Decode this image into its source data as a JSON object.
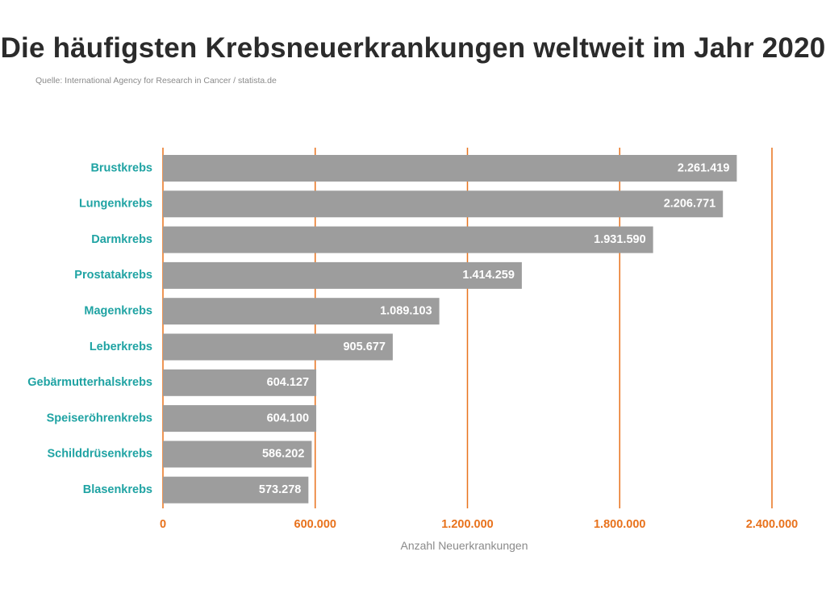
{
  "header": {
    "title": "Die häufigsten Krebsneuerkrankungen weltweit im Jahr 2020",
    "source": "Quelle: International Agency for Research in Cancer / statista.de"
  },
  "colors": {
    "bar": "#9d9d9d",
    "gridline": "#e8721c",
    "category_label": "#1fa3a3",
    "tick_label": "#e8721c",
    "value_label": "#ffffff"
  },
  "chart_data": {
    "type": "bar",
    "orientation": "horizontal",
    "title": "Die häufigsten Krebsneuerkrankungen weltweit im Jahr 2020",
    "xlabel": "Anzahl Neuerkrankungen",
    "ylabel": "",
    "xlim": [
      0,
      2400000
    ],
    "grid": true,
    "categories": [
      "Brustkrebs",
      "Lungenkrebs",
      "Darmkrebs",
      "Prostatakrebs",
      "Magenkrebs",
      "Leberkrebs",
      "Gebärmutterhalskrebs",
      "Speiseröhrenkrebs",
      "Schilddrüsenkrebs",
      "Blasenkrebs"
    ],
    "values": [
      2261419,
      2206771,
      1931590,
      1414259,
      1089103,
      905677,
      604127,
      604100,
      586202,
      573278
    ],
    "value_labels": [
      "2.261.419",
      "2.206.771",
      "1.931.590",
      "1.414.259",
      "1.089.103",
      "905.677",
      "604.127",
      "604.100",
      "586.202",
      "573.278"
    ],
    "ticks": [
      0,
      600000,
      1200000,
      1800000,
      2400000
    ],
    "tick_labels": [
      "0",
      "600.000",
      "1.200.000",
      "1.800.000",
      "2.400.000"
    ]
  }
}
